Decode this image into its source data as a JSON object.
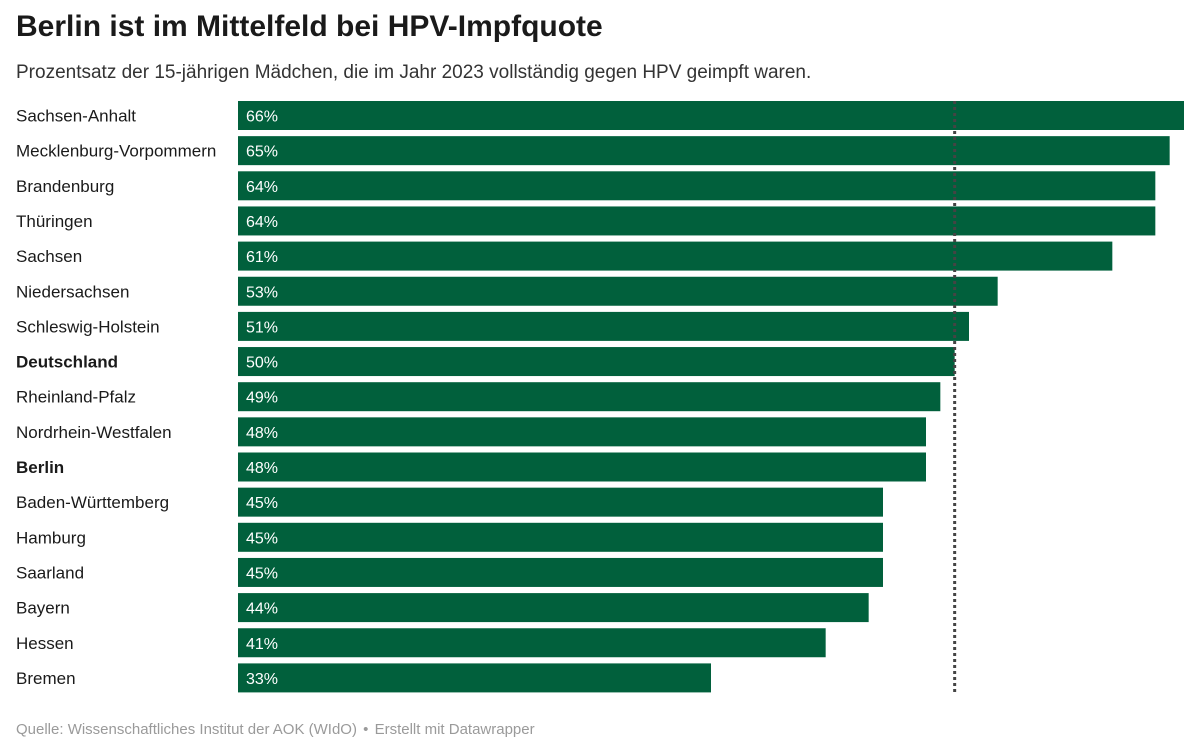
{
  "header": {
    "title": "Berlin ist im Mittelfeld bei HPV-Impfquote",
    "subtitle": "Prozentsatz der 15-jährigen Mädchen, die im Jahr 2023 vollständig gegen HPV geimpft waren."
  },
  "footer": {
    "source": "Quelle: Wissenschaftliches Institut der AOK (WIdO)",
    "separator": "•",
    "credit": "Erstellt mit Datawrapper"
  },
  "colors": {
    "bar": "#01603c",
    "bar_label": "#ffffff",
    "reference_line": "#444444",
    "category_text": "#1a1a1a"
  },
  "chart_data": {
    "type": "bar",
    "orientation": "horizontal",
    "title": "Berlin ist im Mittelfeld bei HPV-Impfquote",
    "subtitle": "Prozentsatz der 15-jährigen Mädchen, die im Jahr 2023 vollständig gegen HPV geimpft waren.",
    "categories": [
      "Sachsen-Anhalt",
      "Mecklenburg-Vorpommern",
      "Brandenburg",
      "Thüringen",
      "Sachsen",
      "Niedersachsen",
      "Schleswig-Holstein",
      "Deutschland",
      "Rheinland-Pfalz",
      "Nordrhein-Westfalen",
      "Berlin",
      "Baden-Württemberg",
      "Hamburg",
      "Saarland",
      "Bayern",
      "Hessen",
      "Bremen"
    ],
    "values": [
      66,
      65,
      64,
      64,
      61,
      53,
      51,
      50,
      49,
      48,
      48,
      45,
      45,
      45,
      44,
      41,
      33
    ],
    "value_labels": [
      "66%",
      "65%",
      "64%",
      "64%",
      "61%",
      "53%",
      "51%",
      "50%",
      "49%",
      "48%",
      "48%",
      "45%",
      "45%",
      "45%",
      "44%",
      "41%",
      "33%"
    ],
    "highlighted": [
      "Deutschland",
      "Berlin"
    ],
    "reference_line": 50,
    "xlim": [
      0,
      66
    ],
    "unit": "%",
    "grid": false,
    "legend": "none"
  }
}
